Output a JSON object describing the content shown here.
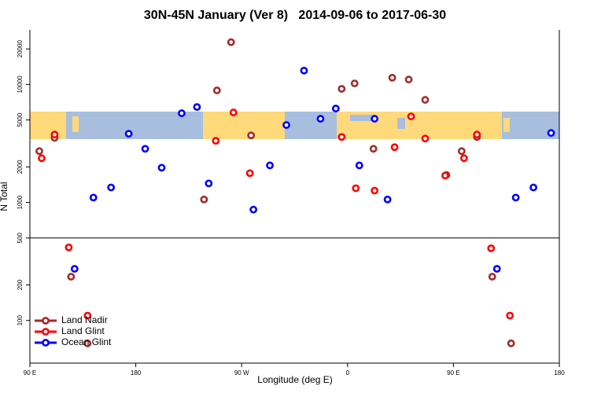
{
  "chart_data": {
    "type": "scatter",
    "title": "30N-45N January (Ver 8)   2014-09-06 to 2017-06-30",
    "x_label": "Longitude (deg E)",
    "y_label": "N Total",
    "log_y": true,
    "panel_split": 500,
    "legend": "bottom-left",
    "xlim": [
      90,
      540
    ],
    "xticks": [
      {
        "value": 90,
        "label": "90 E"
      },
      180,
      {
        "value": 270,
        "label": "90 W"
      },
      {
        "value": 360,
        "label": "0"
      },
      {
        "value": 450,
        "label": "90 E"
      },
      {
        "value": 540,
        "label": "180"
      }
    ],
    "ylim": [
      43.5,
      29000
    ],
    "yticks": [
      100,
      200,
      500,
      1000,
      2000,
      5000,
      10000,
      20000
    ],
    "series": [
      {
        "name": "Land Nadir",
        "color": "#a52a2a",
        "x": [
          98,
          111,
          125,
          139,
          238,
          249,
          261,
          278,
          355,
          366,
          382,
          398,
          412,
          426,
          444,
          457,
          470,
          483,
          499
        ],
        "values": [
          2720,
          3530,
          235,
          64,
          1060,
          8900,
          22800,
          3700,
          9180,
          10200,
          2850,
          11400,
          11000,
          7400,
          1710,
          2720,
          3590,
          235,
          64
        ]
      },
      {
        "name": "Land Glint",
        "color": "#ff0000",
        "x": [
          100,
          111,
          123,
          139,
          248,
          263,
          277,
          355,
          367,
          383,
          400,
          414,
          426,
          443,
          459,
          470,
          482,
          498
        ],
        "values": [
          2370,
          3760,
          416,
          110,
          3330,
          5790,
          1770,
          3590,
          1320,
          1260,
          2940,
          5360,
          3480,
          1690,
          2370,
          3760,
          409,
          110
        ]
      },
      {
        "name": "Ocean Glint",
        "color": "#0000ff",
        "x": [
          128,
          144,
          159,
          174,
          188,
          202,
          219,
          232,
          242,
          280,
          294,
          308,
          323,
          337,
          350,
          370,
          383,
          394,
          487,
          503,
          518,
          533
        ],
        "values": [
          274,
          1100,
          1340,
          3820,
          2850,
          1970,
          5700,
          6440,
          1450,
          870,
          2060,
          4530,
          13100,
          5120,
          6250,
          2060,
          5120,
          1060,
          274,
          1100,
          1340,
          3880
        ]
      }
    ]
  }
}
